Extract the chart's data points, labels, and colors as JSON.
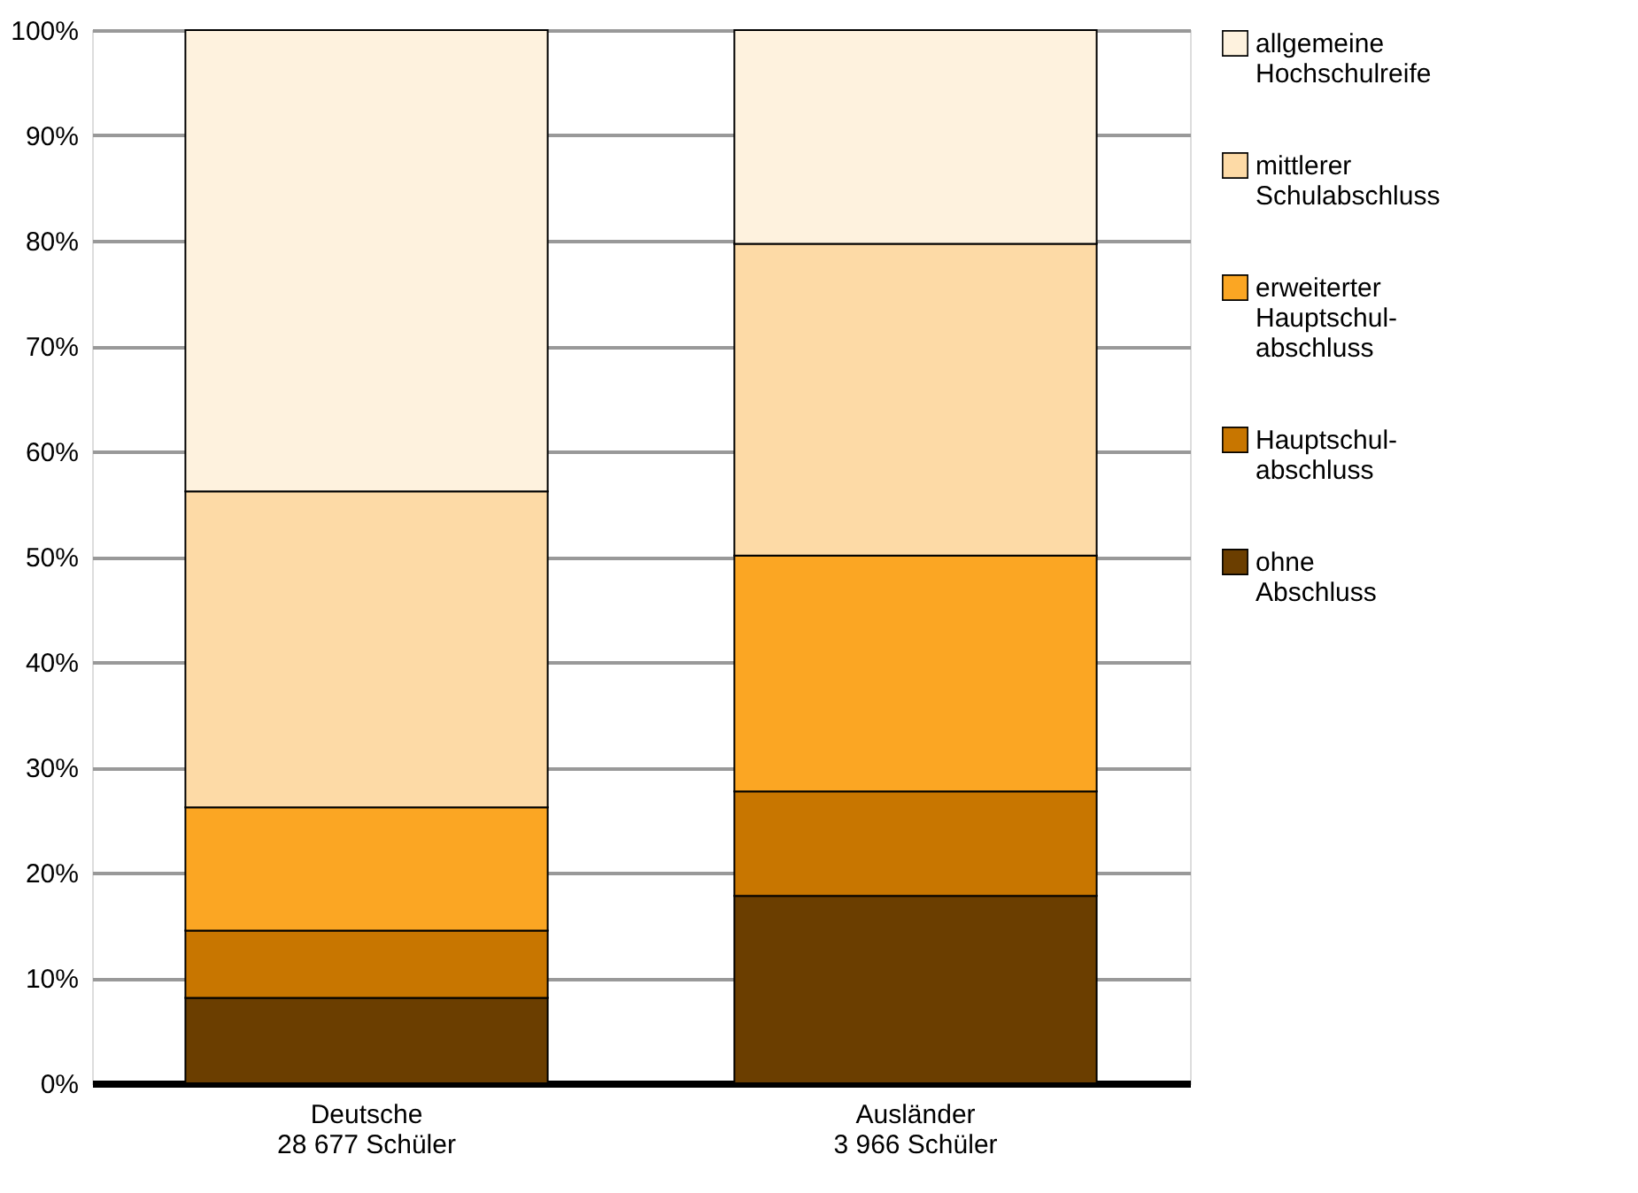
{
  "chart_data": {
    "type": "bar",
    "stacked": true,
    "categories": [
      "Deutsche\n28 677 Schüler",
      "Ausländer\n3 966 Schüler"
    ],
    "series": [
      {
        "name": "ohne\nAbschluss",
        "color": "#6b3e00",
        "values": [
          8.1,
          17.8
        ]
      },
      {
        "name": "Hauptschul-\nabschluss",
        "color": "#c87600",
        "values": [
          6.4,
          9.9
        ]
      },
      {
        "name": "erweiterter\nHauptschul-\nabschluss",
        "color": "#fba623",
        "values": [
          11.7,
          22.4
        ]
      },
      {
        "name": "mittlerer\nSchulabschluss",
        "color": "#fddaa6",
        "values": [
          30.0,
          29.6
        ]
      },
      {
        "name": "allgemeine\nHochschulreife",
        "color": "#fef2de",
        "values": [
          43.8,
          20.3
        ]
      }
    ],
    "ylim": [
      0,
      100
    ],
    "yticks": [
      {
        "value": 0,
        "label": "0%"
      },
      {
        "value": 10,
        "label": "10%"
      },
      {
        "value": 20,
        "label": "20%"
      },
      {
        "value": 30,
        "label": "30%"
      },
      {
        "value": 40,
        "label": "40%"
      },
      {
        "value": 50,
        "label": "50%"
      },
      {
        "value": 60,
        "label": "60%"
      },
      {
        "value": 70,
        "label": "70%"
      },
      {
        "value": 80,
        "label": "80%"
      },
      {
        "value": 90,
        "label": "90%"
      },
      {
        "value": 100,
        "label": "100%"
      }
    ],
    "grid": "y",
    "legend": "right"
  }
}
